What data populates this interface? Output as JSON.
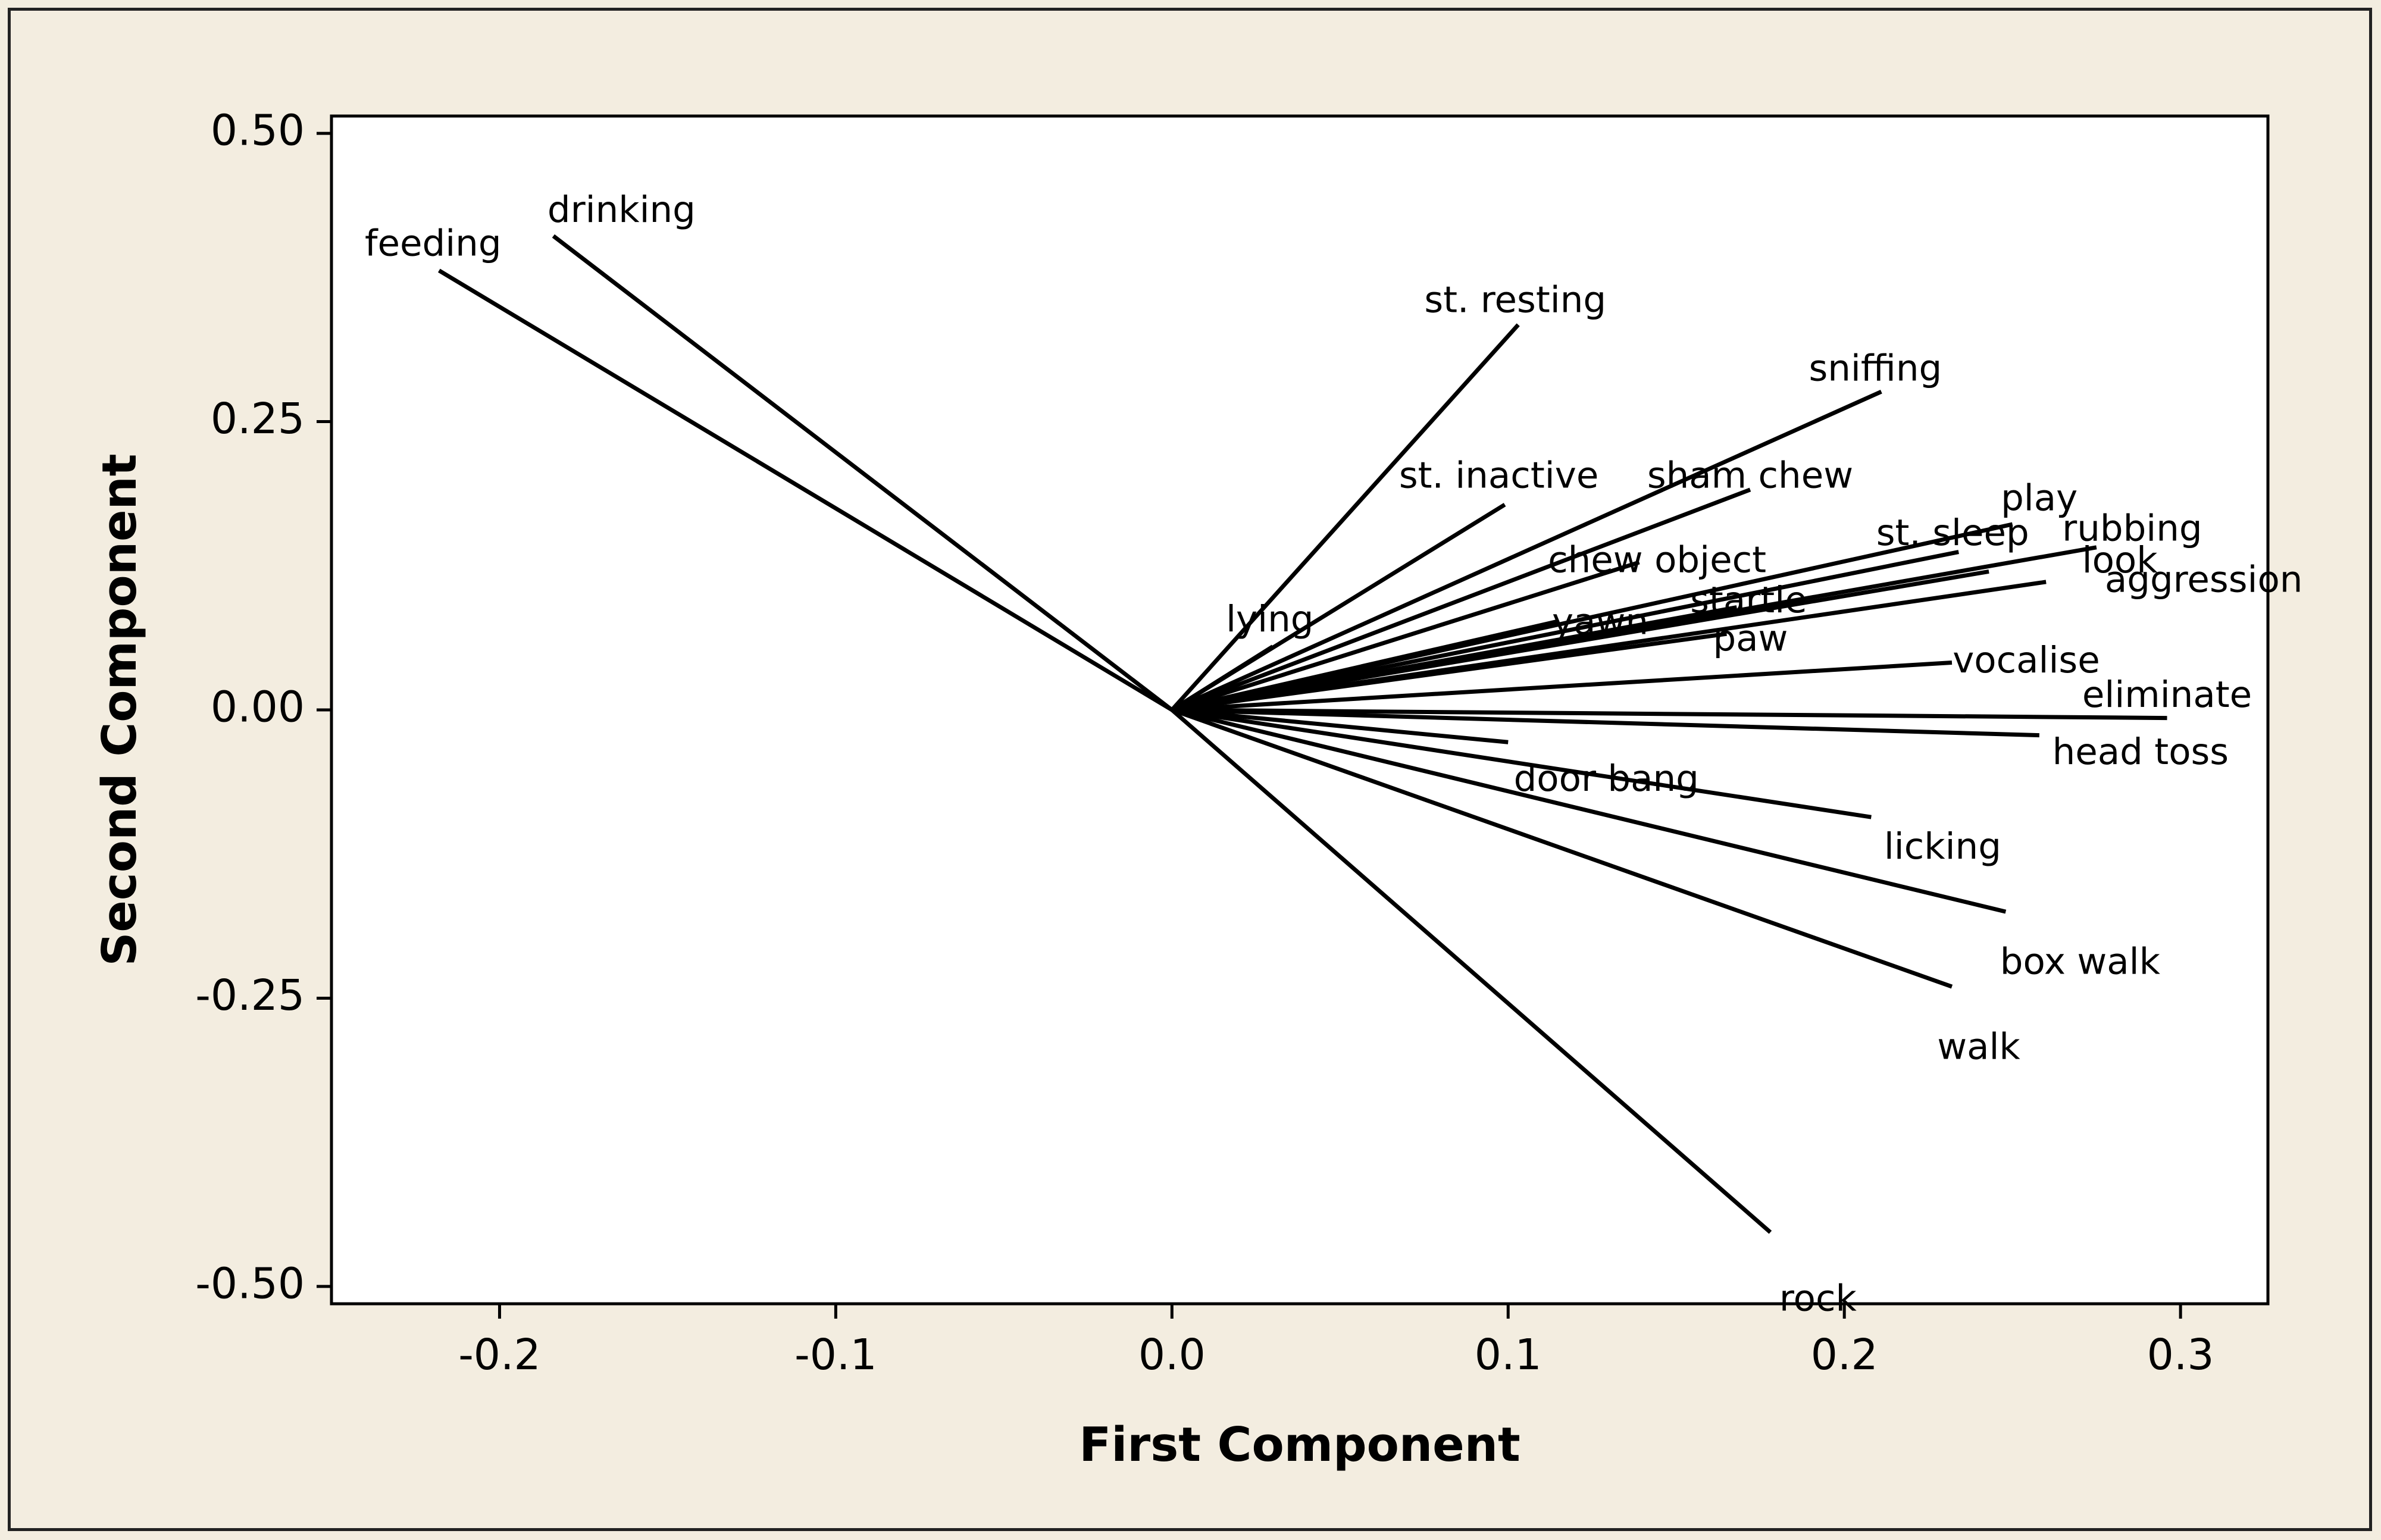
{
  "chart_data": {
    "type": "line",
    "subtype": "biplot-loading-vectors",
    "title": "",
    "xlabel": "First Component",
    "ylabel": "Second Component",
    "xlim": [
      -0.25,
      0.326
    ],
    "ylim": [
      -0.515,
      0.515
    ],
    "grid": false,
    "x_ticks": [
      -0.2,
      -0.1,
      0.0,
      0.1,
      0.2,
      0.3
    ],
    "x_tick_labels": [
      "-0.2",
      "-0.1",
      "0.0",
      "0.1",
      "0.2",
      "0.3"
    ],
    "y_ticks": [
      0.5,
      0.25,
      0.0,
      -0.25,
      -0.5
    ],
    "y_tick_labels": [
      "0.50",
      "0.25",
      "0.00",
      "-0.25",
      "-0.50"
    ],
    "vectors": [
      {
        "name": "feeding",
        "x": -0.218,
        "y": 0.381
      },
      {
        "name": "drinking",
        "x": -0.184,
        "y": 0.411
      },
      {
        "name": "st. resting",
        "x": 0.103,
        "y": 0.334
      },
      {
        "name": "sniffing",
        "x": 0.211,
        "y": 0.276
      },
      {
        "name": "st. inactive",
        "x": 0.099,
        "y": 0.178
      },
      {
        "name": "sham chew",
        "x": 0.172,
        "y": 0.191
      },
      {
        "name": "play",
        "x": 0.25,
        "y": 0.161
      },
      {
        "name": "st. sleep",
        "x": 0.234,
        "y": 0.137
      },
      {
        "name": "rubbing",
        "x": 0.275,
        "y": 0.141
      },
      {
        "name": "look",
        "x": 0.243,
        "y": 0.12
      },
      {
        "name": "aggression",
        "x": 0.26,
        "y": 0.111
      },
      {
        "name": "chew object",
        "x": 0.139,
        "y": 0.128
      },
      {
        "name": "yawn",
        "x": 0.115,
        "y": 0.077
      },
      {
        "name": "startle",
        "x": 0.168,
        "y": 0.089
      },
      {
        "name": "paw",
        "x": 0.165,
        "y": 0.066
      },
      {
        "name": "lying",
        "x": 0.03,
        "y": 0.055
      },
      {
        "name": "vocalise",
        "x": 0.232,
        "y": 0.041
      },
      {
        "name": "eliminate",
        "x": 0.296,
        "y": -0.007
      },
      {
        "name": "head toss",
        "x": 0.258,
        "y": -0.022
      },
      {
        "name": "door bang",
        "x": 0.1,
        "y": -0.028
      },
      {
        "name": "licking",
        "x": 0.208,
        "y": -0.093
      },
      {
        "name": "box walk",
        "x": 0.248,
        "y": -0.175
      },
      {
        "name": "walk",
        "x": 0.232,
        "y": -0.24
      },
      {
        "name": "rock",
        "x": 0.178,
        "y": -0.453
      }
    ]
  }
}
